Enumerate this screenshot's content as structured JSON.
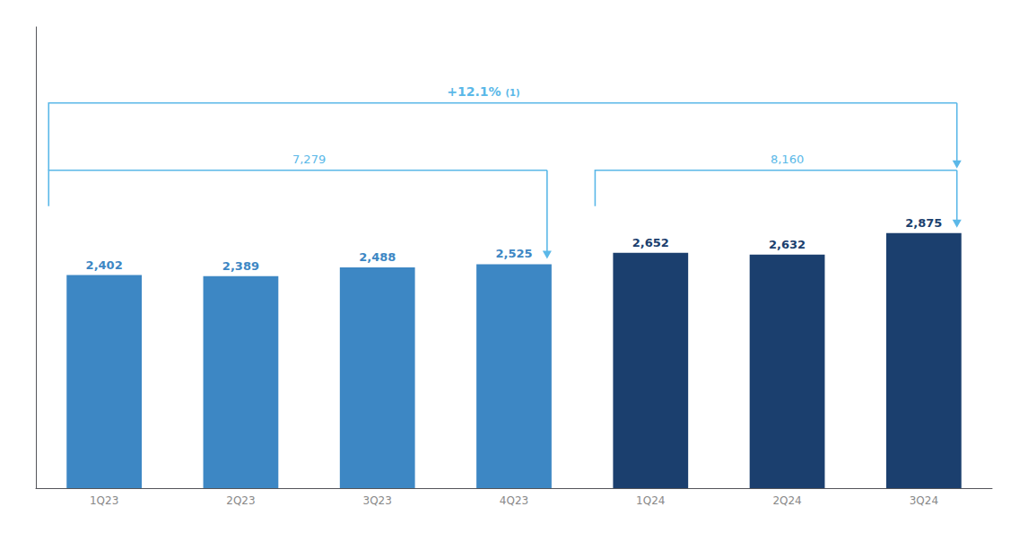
{
  "chart_data": {
    "type": "bar",
    "categories": [
      "1Q23",
      "2Q23",
      "3Q23",
      "4Q23",
      "1Q24",
      "2Q24",
      "3Q24"
    ],
    "values": [
      2402,
      2389,
      2488,
      2525,
      2652,
      2632,
      2875
    ],
    "value_labels": [
      "2,402",
      "2,389",
      "2,488",
      "2,525",
      "2,652",
      "2,632",
      "2,875"
    ],
    "colors": [
      "#3d87c4",
      "#3d87c4",
      "#3d87c4",
      "#3d87c4",
      "#1b3f6e",
      "#1b3f6e",
      "#1b3f6e"
    ],
    "ylim": [
      0,
      5200
    ],
    "grid": false,
    "tick_labels": "x",
    "data_labels": true,
    "annotations": [
      {
        "text": "7,279",
        "color": "#5bb8e8"
      },
      {
        "text": "8,160",
        "color": "#5bb8e8"
      },
      {
        "text": "+12.1%",
        "color": "#5bb8e8"
      },
      {
        "text": "(1)",
        "color": "#5bb8e8"
      }
    ]
  }
}
